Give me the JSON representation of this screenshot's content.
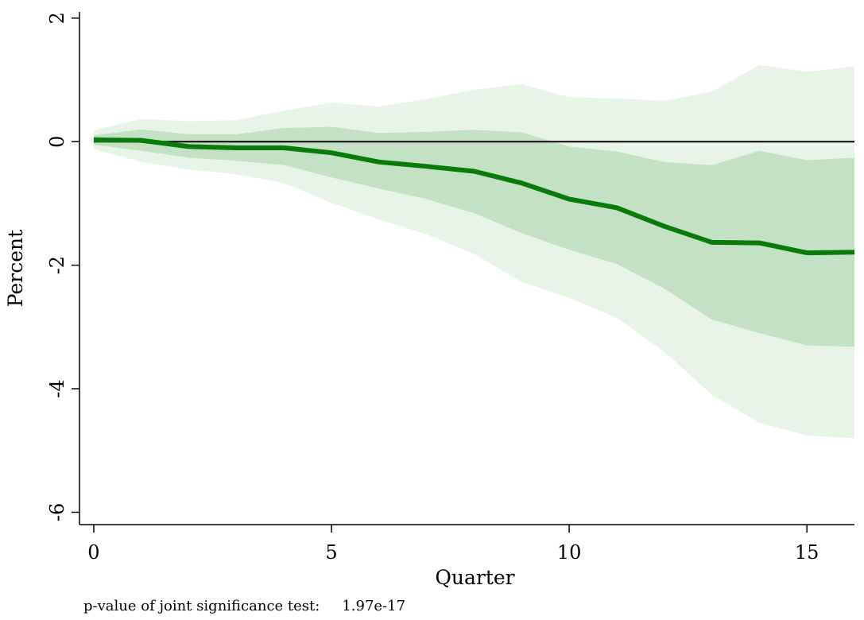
{
  "chart_data": {
    "type": "area",
    "title": "",
    "xlabel": "Quarter",
    "ylabel": "Percent",
    "xlim": [
      -0.3,
      16
    ],
    "ylim": [
      -6.2,
      2.1
    ],
    "xticks": [
      0,
      5,
      10,
      15
    ],
    "yticks": [
      -6,
      -4,
      -2,
      0,
      2
    ],
    "grid": false,
    "legend": "none",
    "reference_line": 0,
    "x": [
      0,
      1,
      2,
      3,
      4,
      5,
      6,
      7,
      8,
      9,
      10,
      11,
      12,
      13,
      14,
      15,
      16
    ],
    "series": [
      {
        "role": "point-estimate",
        "color": "#0a7a0a",
        "values": [
          0.03,
          0.02,
          -0.08,
          -0.1,
          -0.1,
          -0.18,
          -0.33,
          -0.4,
          -0.48,
          -0.67,
          -0.93,
          -1.07,
          -1.37,
          -1.63,
          -1.64,
          -1.8,
          -1.79
        ]
      },
      {
        "role": "inner-band",
        "color": "#c3e2c3",
        "upper": [
          0.1,
          0.2,
          0.12,
          0.12,
          0.22,
          0.24,
          0.14,
          0.16,
          0.19,
          0.15,
          -0.08,
          -0.16,
          -0.33,
          -0.38,
          -0.15,
          -0.3,
          -0.26
        ],
        "lower": [
          -0.05,
          -0.15,
          -0.26,
          -0.31,
          -0.38,
          -0.58,
          -0.76,
          -0.93,
          -1.16,
          -1.48,
          -1.75,
          -1.98,
          -2.38,
          -2.88,
          -3.1,
          -3.3,
          -3.32
        ]
      },
      {
        "role": "outer-band",
        "color": "#e8f4e8",
        "upper": [
          0.18,
          0.37,
          0.33,
          0.35,
          0.5,
          0.63,
          0.57,
          0.69,
          0.84,
          0.93,
          0.72,
          0.7,
          0.66,
          0.81,
          1.24,
          1.13,
          1.22
        ],
        "lower": [
          -0.12,
          -0.33,
          -0.45,
          -0.53,
          -0.67,
          -0.99,
          -1.26,
          -1.5,
          -1.82,
          -2.27,
          -2.53,
          -2.85,
          -3.4,
          -4.1,
          -4.55,
          -4.76,
          -4.8
        ]
      }
    ]
  },
  "footnote": {
    "label": "p-value of joint significance test:",
    "value": "1.97e-17"
  }
}
